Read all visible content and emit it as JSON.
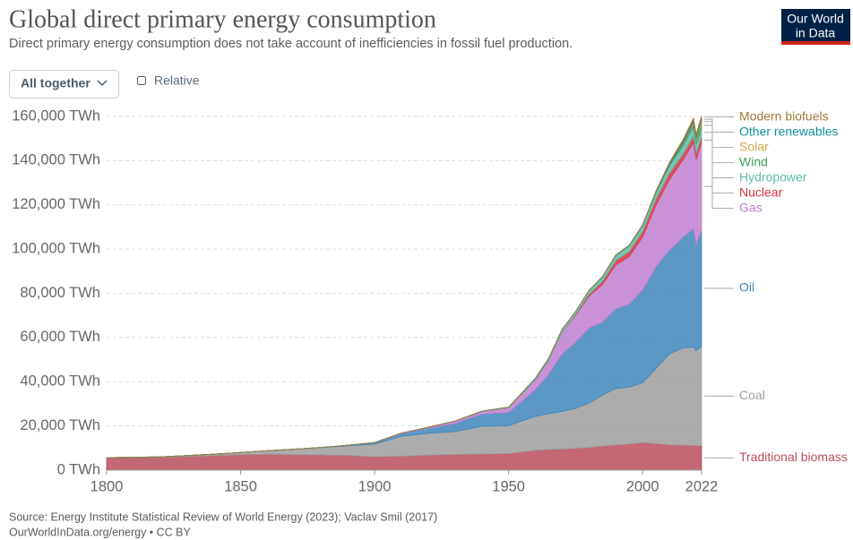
{
  "chart_data": {
    "type": "stacked-area",
    "title": "Global direct primary energy consumption",
    "subtitle": "Direct primary energy consumption does not take account of inefficiencies in fossil fuel production.",
    "x": [
      1800,
      1820,
      1840,
      1850,
      1860,
      1870,
      1880,
      1890,
      1900,
      1910,
      1920,
      1930,
      1940,
      1950,
      1960,
      1965,
      1970,
      1975,
      1980,
      1985,
      1990,
      1995,
      2000,
      2005,
      2010,
      2015,
      2019,
      2020,
      2022
    ],
    "xlim": [
      1800,
      2022
    ],
    "xticks": [
      1800,
      1850,
      1900,
      1950,
      2000,
      2022
    ],
    "ylim": [
      0,
      160000
    ],
    "yticks": [
      {
        "value": 0,
        "label": "0 TWh"
      },
      {
        "value": 20000,
        "label": "20,000 TWh"
      },
      {
        "value": 40000,
        "label": "40,000 TWh"
      },
      {
        "value": 60000,
        "label": "60,000 TWh"
      },
      {
        "value": 80000,
        "label": "80,000 TWh"
      },
      {
        "value": 100000,
        "label": "100,000 TWh"
      },
      {
        "value": 120000,
        "label": "120,000 TWh"
      },
      {
        "value": 140000,
        "label": "140,000 TWh"
      },
      {
        "value": 160000,
        "label": "160,000 TWh"
      }
    ],
    "grid": true,
    "series": [
      {
        "name": "Traditional biomass",
        "color": "#b84d5c",
        "values": [
          5556,
          5800,
          6600,
          7000,
          7200,
          7000,
          6900,
          6700,
          6100,
          6300,
          6800,
          7100,
          7300,
          7500,
          9000,
          9400,
          9600,
          9900,
          10300,
          10900,
          11400,
          11800,
          12500,
          12000,
          11500,
          11300,
          11200,
          11100,
          11100
        ]
      },
      {
        "name": "Coal",
        "color": "#9e9e9e",
        "values": [
          97,
          200,
          600,
          1000,
          1600,
          2500,
          3300,
          4300,
          5700,
          9000,
          9900,
          10300,
          12500,
          12600,
          15400,
          16100,
          17000,
          18000,
          20000,
          23000,
          25500,
          25800,
          27000,
          34000,
          41000,
          44000,
          44500,
          43000,
          44800
        ]
      },
      {
        "name": "Oil",
        "color": "#3f86bb",
        "values": [
          0,
          0,
          0,
          0,
          0,
          6,
          50,
          200,
          600,
          1200,
          2200,
          3800,
          5500,
          6000,
          12000,
          18000,
          26000,
          30000,
          34000,
          33000,
          36000,
          37500,
          42000,
          46000,
          47000,
          50000,
          53600,
          48000,
          52700
        ]
      },
      {
        "name": "Gas",
        "color": "#c07fcf",
        "values": [
          0,
          0,
          0,
          0,
          0,
          0,
          0,
          100,
          100,
          250,
          400,
          900,
          1200,
          2100,
          4500,
          6300,
          10000,
          12000,
          14500,
          17000,
          20000,
          21500,
          24000,
          28000,
          32000,
          35000,
          39000,
          38500,
          39400
        ]
      },
      {
        "name": "Nuclear",
        "color": "#d9343d",
        "values": [
          0,
          0,
          0,
          0,
          0,
          0,
          0,
          0,
          0,
          0,
          0,
          0,
          0,
          0,
          0,
          7,
          23,
          400,
          700,
          1500,
          2000,
          2300,
          2500,
          2800,
          2750,
          2570,
          2790,
          2690,
          2610
        ]
      },
      {
        "name": "Hydropower",
        "color": "#5fb8a8",
        "values": [
          0,
          0,
          0,
          0,
          0,
          0,
          0,
          0,
          15,
          30,
          60,
          120,
          190,
          330,
          690,
          920,
          1200,
          1400,
          1700,
          2000,
          2200,
          2500,
          2600,
          2900,
          3400,
          3900,
          4200,
          4300,
          4300
        ]
      },
      {
        "name": "Wind",
        "color": "#3f9c5a",
        "values": [
          0,
          0,
          0,
          0,
          0,
          0,
          0,
          0,
          0,
          0,
          0,
          0,
          0,
          0,
          0,
          0,
          0,
          0,
          0,
          0,
          4,
          8,
          31,
          104,
          346,
          831,
          1420,
          1590,
          2100
        ]
      },
      {
        "name": "Solar",
        "color": "#d4a646",
        "values": [
          0,
          0,
          0,
          0,
          0,
          0,
          0,
          0,
          0,
          0,
          0,
          0,
          0,
          0,
          0,
          0,
          0,
          0,
          0,
          0,
          0,
          0,
          1,
          4,
          32,
          260,
          700,
          850,
          1300
        ]
      },
      {
        "name": "Other renewables",
        "color": "#11909c",
        "values": [
          0,
          0,
          0,
          0,
          0,
          0,
          0,
          0,
          0,
          0,
          0,
          0,
          0,
          0,
          0,
          20,
          30,
          40,
          80,
          150,
          200,
          230,
          280,
          360,
          500,
          670,
          780,
          800,
          850
        ]
      },
      {
        "name": "Modern biofuels",
        "color": "#a2773a",
        "values": [
          0,
          0,
          0,
          0,
          0,
          0,
          0,
          0,
          0,
          0,
          0,
          0,
          0,
          0,
          0,
          0,
          0,
          0,
          10,
          40,
          80,
          80,
          110,
          220,
          640,
          850,
          1100,
          1030,
          1150
        ]
      }
    ]
  },
  "logo": [
    "Our World",
    "in Data"
  ],
  "controls": {
    "dropdown": "All together",
    "checkbox": "Relative"
  },
  "footer": {
    "source": "Source: Energy Institute Statistical Review of World Energy (2023); Vaclav Smil (2017)",
    "url": "OurWorldInData.org/energy • CC BY"
  }
}
